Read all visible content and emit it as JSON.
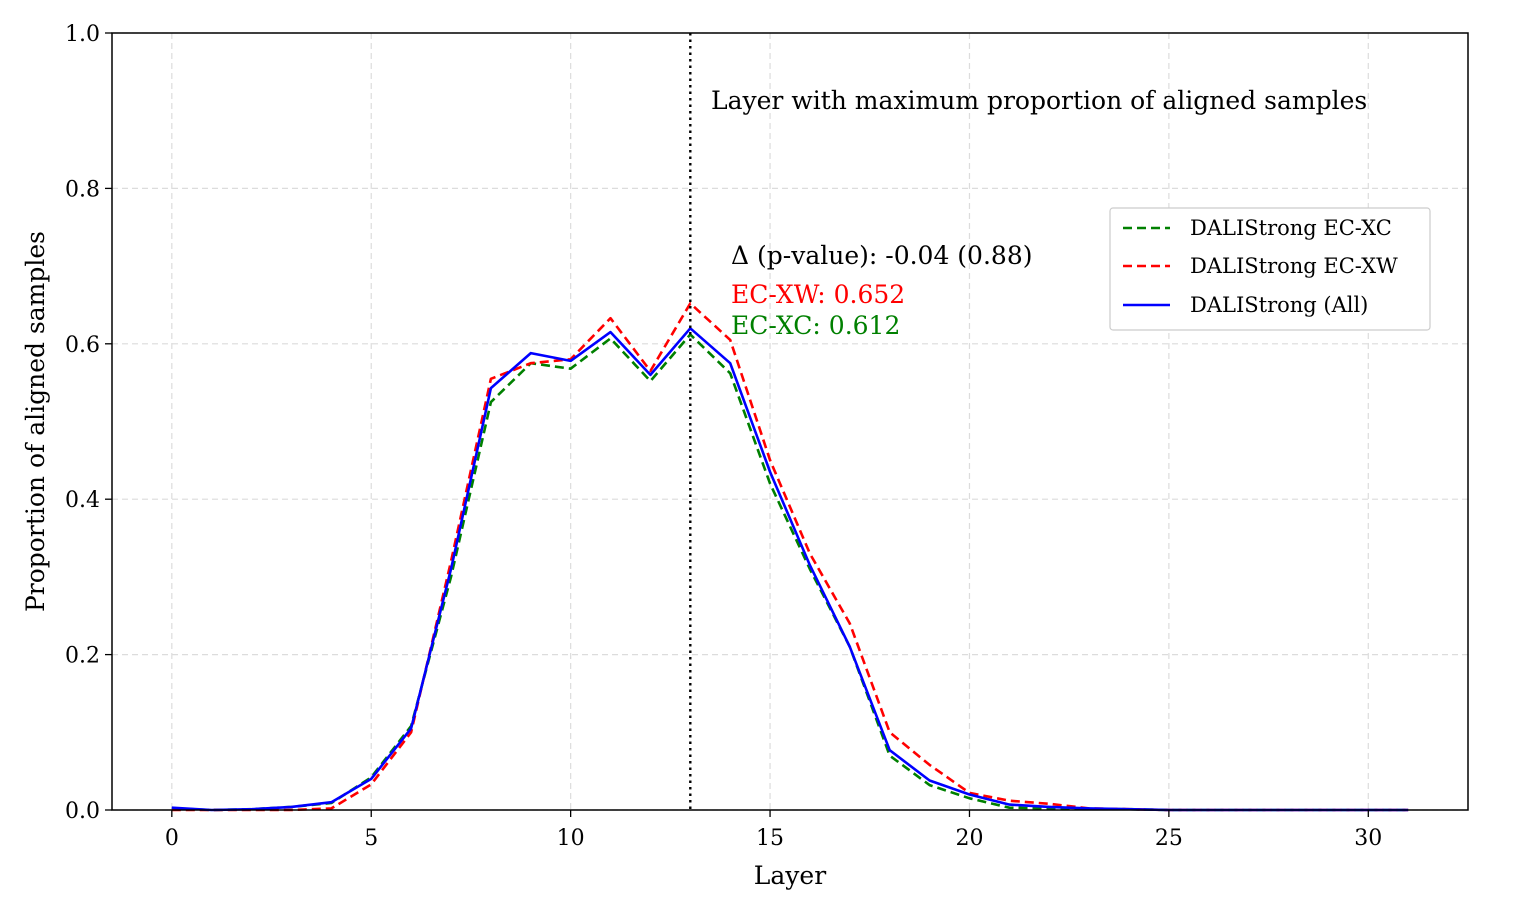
{
  "chart_data": {
    "type": "line",
    "title": "",
    "xlabel": "Layer",
    "ylabel": "Proportion of aligned samples",
    "xlim": [
      -1.5,
      32.5
    ],
    "ylim": [
      0.0,
      1.0
    ],
    "grid": true,
    "x_ticks": [
      0,
      5,
      10,
      15,
      20,
      25,
      30
    ],
    "x_tick_labels": [
      "0",
      "5",
      "10",
      "15",
      "20",
      "25",
      "30"
    ],
    "y_ticks": [
      0.0,
      0.2,
      0.4,
      0.6,
      0.8,
      1.0
    ],
    "y_tick_labels": [
      "0.0",
      "0.2",
      "0.4",
      "0.6",
      "0.8",
      "1.0"
    ],
    "x": [
      0,
      1,
      2,
      3,
      4,
      5,
      6,
      7,
      8,
      9,
      10,
      11,
      12,
      13,
      14,
      15,
      16,
      17,
      18,
      19,
      20,
      21,
      22,
      23,
      24,
      25,
      26,
      27,
      28,
      29,
      30,
      31
    ],
    "series": [
      {
        "name": "DALIStrong EC-XC",
        "color": "#008000",
        "style": "dashed",
        "values": [
          0.002,
          0.0,
          0.001,
          0.004,
          0.009,
          0.042,
          0.108,
          0.3,
          0.525,
          0.575,
          0.568,
          0.607,
          0.552,
          0.612,
          0.562,
          0.42,
          0.31,
          0.21,
          0.07,
          0.032,
          0.015,
          0.003,
          0.002,
          0.001,
          0.001,
          0.0,
          0.0,
          0.0,
          0.0,
          0.0,
          0.0,
          0.0
        ]
      },
      {
        "name": "DALIStrong EC-XW",
        "color": "#ff0000",
        "style": "dashed",
        "values": [
          0.0,
          0.0,
          0.0,
          0.0,
          0.002,
          0.033,
          0.1,
          0.32,
          0.555,
          0.575,
          0.58,
          0.633,
          0.565,
          0.652,
          0.605,
          0.45,
          0.33,
          0.24,
          0.1,
          0.058,
          0.022,
          0.012,
          0.008,
          0.002,
          0.001,
          0.0,
          0.0,
          0.0,
          0.0,
          0.0,
          0.0,
          0.0
        ]
      },
      {
        "name": "DALIStrong (All)",
        "color": "#0000ff",
        "style": "solid",
        "values": [
          0.003,
          0.0,
          0.001,
          0.004,
          0.01,
          0.04,
          0.105,
          0.31,
          0.543,
          0.588,
          0.578,
          0.615,
          0.56,
          0.62,
          0.575,
          0.435,
          0.315,
          0.21,
          0.077,
          0.038,
          0.02,
          0.007,
          0.004,
          0.002,
          0.001,
          0.0,
          0.0,
          0.0,
          0.0,
          0.0,
          0.0,
          0.0
        ]
      }
    ],
    "vline": {
      "x": 13,
      "style": "dotted",
      "color": "#000000",
      "label": "Layer with maximum proportion of aligned samples"
    },
    "annotations": [
      {
        "text": "Δ (p-value): -0.04 (0.88)",
        "color": "#000000"
      },
      {
        "text": "EC-XW: 0.652",
        "color": "#ff0000"
      },
      {
        "text": "EC-XC: 0.612",
        "color": "#008000"
      }
    ],
    "legend_position": "upper-right"
  }
}
